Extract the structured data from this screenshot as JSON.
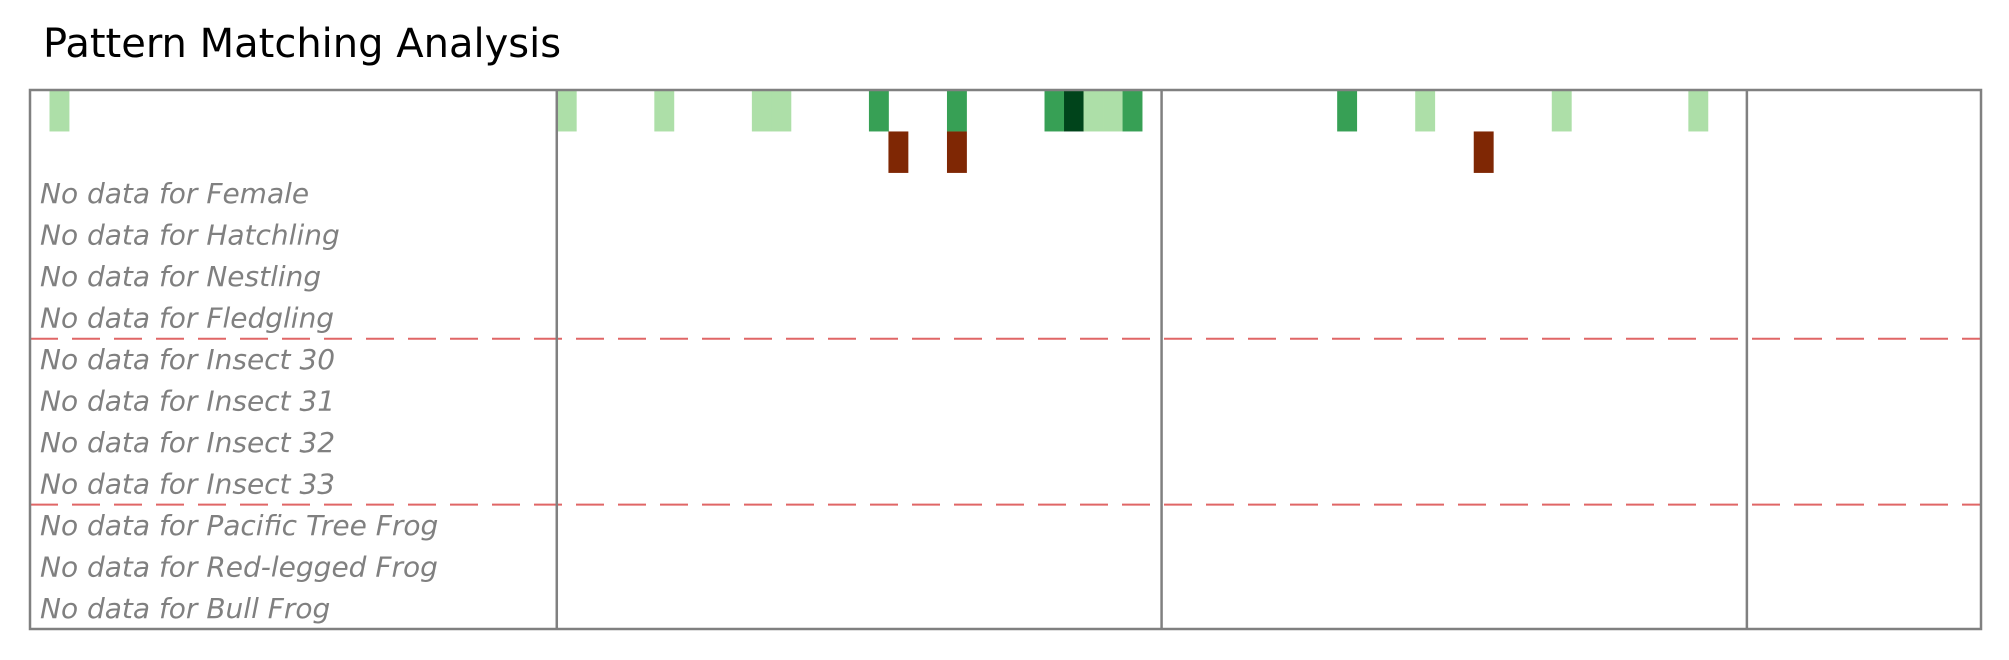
{
  "title": "Pattern Matching Analysis",
  "chart_data": {
    "type": "heatmap",
    "title": "Pattern Matching Analysis",
    "n_columns": 100,
    "column_dividers_after": [
      26,
      57,
      87
    ],
    "group_dividers_after_row": [
      5,
      9
    ],
    "colors": {
      "green_light": "#addfa8",
      "green_mid": "#37a055",
      "green_dark": "#00441b",
      "brown": "#7f2704",
      "divider": "#808080",
      "group_line": "#e06666"
    },
    "rows": [
      {
        "cells": [
          {
            "col": 1,
            "shade": "green_light"
          },
          {
            "col": 27,
            "shade": "green_light"
          },
          {
            "col": 32,
            "shade": "green_light"
          },
          {
            "col": 37,
            "shade": "green_light"
          },
          {
            "col": 38,
            "shade": "green_light"
          },
          {
            "col": 43,
            "shade": "green_mid"
          },
          {
            "col": 47,
            "shade": "green_mid"
          },
          {
            "col": 52,
            "shade": "green_mid"
          },
          {
            "col": 53,
            "shade": "green_dark"
          },
          {
            "col": 54,
            "shade": "green_light"
          },
          {
            "col": 55,
            "shade": "green_light"
          },
          {
            "col": 56,
            "shade": "green_mid"
          },
          {
            "col": 67,
            "shade": "green_mid"
          },
          {
            "col": 71,
            "shade": "green_light"
          },
          {
            "col": 78,
            "shade": "green_light"
          },
          {
            "col": 85,
            "shade": "green_light"
          }
        ]
      },
      {
        "cells": [
          {
            "col": 44,
            "shade": "brown"
          },
          {
            "col": 47,
            "shade": "brown"
          },
          {
            "col": 74,
            "shade": "brown"
          }
        ]
      },
      {
        "no_data": "No data for Female"
      },
      {
        "no_data": "No data for Hatchling"
      },
      {
        "no_data": "No data for Nestling"
      },
      {
        "no_data": "No data for Fledgling"
      },
      {
        "no_data": "No data for Insect 30"
      },
      {
        "no_data": "No data for Insect 31"
      },
      {
        "no_data": "No data for Insect 32"
      },
      {
        "no_data": "No data for Insect 33"
      },
      {
        "no_data": "No data for Pacific Tree Frog"
      },
      {
        "no_data": "No data for Red-legged Frog"
      },
      {
        "no_data": "No data for Bull Frog"
      }
    ]
  }
}
